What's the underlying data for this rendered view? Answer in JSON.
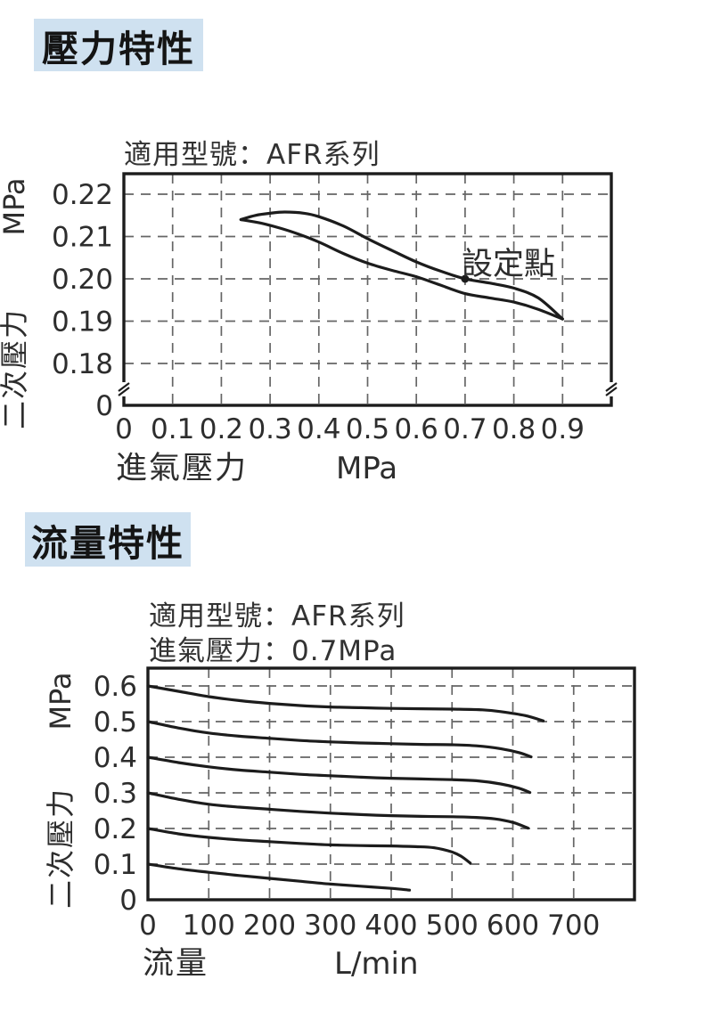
{
  "page": {
    "background": "#ffffff",
    "text_color": "#2d2d2d",
    "accent_bg": "#cfe1f0",
    "curve_color": "#1c1c1c",
    "grid_color": "#666666"
  },
  "sections": [
    {
      "title": "壓力特性"
    },
    {
      "title": "流量特性"
    }
  ],
  "chart_data": [
    {
      "type": "line",
      "title": "適用型號：AFR系列",
      "xlabel": "進氣壓力",
      "x_unit": "MPa",
      "ylabel": "二次壓力",
      "y_unit": "MPa",
      "x_ticks": [
        "0",
        "0.1",
        "0.2",
        "0.3",
        "0.4",
        "0.5",
        "0.6",
        "0.7",
        "0.8",
        "0.9"
      ],
      "y_ticks": [
        "0.22",
        "0.21",
        "0.20",
        "0.19",
        "0.18",
        "0"
      ],
      "x_range": [
        0,
        1.0
      ],
      "y_range_shown": [
        0.18,
        0.225
      ],
      "y_axis_break": true,
      "grid": "dashed",
      "legend": "none",
      "annotation": {
        "label": "設定點",
        "x": 0.7,
        "y": 0.2
      },
      "series": [
        {
          "name": "hysteresis-upper",
          "points": [
            [
              0.24,
              0.214
            ],
            [
              0.27,
              0.215
            ],
            [
              0.3,
              0.2155
            ],
            [
              0.33,
              0.2158
            ],
            [
              0.37,
              0.2155
            ],
            [
              0.4,
              0.2147
            ],
            [
              0.45,
              0.2125
            ],
            [
              0.5,
              0.2095
            ],
            [
              0.55,
              0.2067
            ],
            [
              0.6,
              0.204
            ],
            [
              0.65,
              0.2018
            ],
            [
              0.7,
              0.2
            ],
            [
              0.75,
              0.199
            ],
            [
              0.8,
              0.1978
            ],
            [
              0.85,
              0.1955
            ],
            [
              0.9,
              0.1905
            ]
          ]
        },
        {
          "name": "hysteresis-lower",
          "points": [
            [
              0.24,
              0.214
            ],
            [
              0.28,
              0.2132
            ],
            [
              0.32,
              0.212
            ],
            [
              0.36,
              0.2105
            ],
            [
              0.4,
              0.2087
            ],
            [
              0.45,
              0.206
            ],
            [
              0.5,
              0.2037
            ],
            [
              0.55,
              0.202
            ],
            [
              0.6,
              0.2005
            ],
            [
              0.65,
              0.1985
            ],
            [
              0.7,
              0.1965
            ],
            [
              0.75,
              0.1955
            ],
            [
              0.8,
              0.1945
            ],
            [
              0.85,
              0.1928
            ],
            [
              0.9,
              0.1905
            ]
          ]
        }
      ]
    },
    {
      "type": "line",
      "title": "適用型號：AFR系列",
      "subtitle": "進氣壓力：0.7MPa",
      "xlabel": "流量",
      "x_unit": "L/min",
      "ylabel": "二次壓力",
      "y_unit": "MPa",
      "x_ticks": [
        "0",
        "100",
        "200",
        "300",
        "400",
        "500",
        "600",
        "700"
      ],
      "y_ticks": [
        "0.6",
        "0.5",
        "0.4",
        "0.3",
        "0.2",
        "0.1",
        "0"
      ],
      "x_range": [
        0,
        800
      ],
      "y_range": [
        0,
        0.65
      ],
      "grid": "dashed",
      "legend": "none",
      "series": [
        {
          "name": "set-0.6MPa",
          "points": [
            [
              0,
              0.6
            ],
            [
              50,
              0.585
            ],
            [
              100,
              0.57
            ],
            [
              150,
              0.559
            ],
            [
              200,
              0.551
            ],
            [
              250,
              0.545
            ],
            [
              300,
              0.541
            ],
            [
              350,
              0.539
            ],
            [
              400,
              0.537
            ],
            [
              450,
              0.536
            ],
            [
              500,
              0.535
            ],
            [
              550,
              0.533
            ],
            [
              580,
              0.528
            ],
            [
              620,
              0.517
            ],
            [
              650,
              0.502
            ]
          ]
        },
        {
          "name": "set-0.5MPa",
          "points": [
            [
              0,
              0.5
            ],
            [
              50,
              0.482
            ],
            [
              100,
              0.468
            ],
            [
              150,
              0.459
            ],
            [
              200,
              0.453
            ],
            [
              250,
              0.447
            ],
            [
              300,
              0.443
            ],
            [
              350,
              0.44
            ],
            [
              400,
              0.438
            ],
            [
              450,
              0.436
            ],
            [
              500,
              0.435
            ],
            [
              540,
              0.432
            ],
            [
              580,
              0.424
            ],
            [
              610,
              0.413
            ],
            [
              630,
              0.401
            ]
          ]
        },
        {
          "name": "set-0.4MPa",
          "points": [
            [
              0,
              0.4
            ],
            [
              50,
              0.385
            ],
            [
              100,
              0.373
            ],
            [
              150,
              0.364
            ],
            [
              200,
              0.358
            ],
            [
              250,
              0.352
            ],
            [
              300,
              0.348
            ],
            [
              350,
              0.344
            ],
            [
              400,
              0.341
            ],
            [
              450,
              0.339
            ],
            [
              500,
              0.337
            ],
            [
              540,
              0.334
            ],
            [
              580,
              0.325
            ],
            [
              610,
              0.313
            ],
            [
              628,
              0.301
            ]
          ]
        },
        {
          "name": "set-0.3MPa",
          "points": [
            [
              0,
              0.3
            ],
            [
              50,
              0.282
            ],
            [
              100,
              0.268
            ],
            [
              150,
              0.26
            ],
            [
              200,
              0.254
            ],
            [
              250,
              0.248
            ],
            [
              300,
              0.243
            ],
            [
              350,
              0.239
            ],
            [
              400,
              0.236
            ],
            [
              450,
              0.234
            ],
            [
              500,
              0.233
            ],
            [
              540,
              0.231
            ],
            [
              570,
              0.227
            ],
            [
              600,
              0.217
            ],
            [
              625,
              0.201
            ]
          ]
        },
        {
          "name": "set-0.2MPa",
          "points": [
            [
              0,
              0.2
            ],
            [
              50,
              0.185
            ],
            [
              100,
              0.175
            ],
            [
              150,
              0.168
            ],
            [
              200,
              0.163
            ],
            [
              250,
              0.158
            ],
            [
              300,
              0.154
            ],
            [
              350,
              0.152
            ],
            [
              400,
              0.151
            ],
            [
              440,
              0.149
            ],
            [
              470,
              0.146
            ],
            [
              500,
              0.134
            ],
            [
              515,
              0.122
            ],
            [
              530,
              0.103
            ]
          ]
        },
        {
          "name": "set-0.1MPa",
          "points": [
            [
              0,
              0.1
            ],
            [
              50,
              0.087
            ],
            [
              100,
              0.077
            ],
            [
              150,
              0.068
            ],
            [
              200,
              0.06
            ],
            [
              250,
              0.052
            ],
            [
              300,
              0.044
            ],
            [
              350,
              0.038
            ],
            [
              400,
              0.032
            ],
            [
              430,
              0.027
            ]
          ]
        }
      ]
    }
  ]
}
